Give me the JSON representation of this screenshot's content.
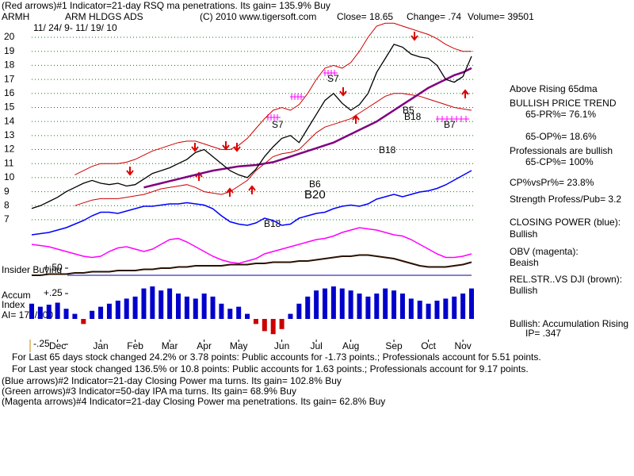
{
  "header": {
    "line1": "(Red arrows)#1 Indicator=21-day RSQ ma penetrations. Its gain= 135.9% Buy",
    "symbol": "ARMH",
    "company": "ARM HLDGS ADS",
    "copyright": "(C) 2010 www.tigersoft.com",
    "close": "Close= 18.65",
    "change": "Change= .74",
    "volume": "Volume= 39501",
    "date_range": "11/ 24/ 9- 11/ 19/ 10"
  },
  "left_labels": {
    "insider": "Insider Buying",
    "accum": "Accum",
    "index": "Index",
    "ai": "AI= 177/200"
  },
  "annotations": [
    "S7",
    "S7",
    "B5",
    "B18",
    "B7",
    "B20",
    "B18",
    "B18",
    "B6"
  ],
  "right_panel": [
    "Above Rising 65dma",
    "BULLISH PRICE TREND",
    "65-PR%= 76.1%",
    "65-OP%= 18.6%",
    "Professionals are bullish",
    "65-CP%= 100%",
    "CP%vsPr%= 23.8%",
    "Strength Profess/Pub= 3.2",
    "CLOSING POWER (blue):",
    "Bullish",
    "OBV (magenta):",
    "Beaish",
    "REL.STR..VS DJI (brown):",
    "Bullish",
    "Bullish: Accumulation Rising",
    "IP= .347"
  ],
  "footer": [
    "For Last 65 days stock changed  24.2% or  3.78 points:  Public accounts for -1.73 points.;  Professionals account for  5.51 points.",
    "For Last year stock changed  136.5% or  10.8 points:  Public accounts for  1.63 points.;  Professionals account for  9.17 points.",
    "(Blue arrows)#2 Indicator=21-day Closing Power ma turns. Its gain= 102.8% Buy",
    "(Green arrows)#3 Indicator=50-day IPA ma turns. Its gain= 68.9% Buy",
    "(Magenta arrows)#4 Indicator=21-day Closing Power ma penetrations. Its gain= 62.8% Buy"
  ],
  "chart_data": [
    {
      "type": "line",
      "ylim": [
        6.5,
        21.5
      ],
      "yticks": [
        7,
        8,
        9,
        10,
        11,
        12,
        13,
        14,
        15,
        16,
        17,
        18,
        19,
        20
      ],
      "grid": true,
      "series": [
        {
          "color": "#cc0000",
          "values": [
            null,
            null,
            null,
            null,
            null,
            10.2,
            10.5,
            10.8,
            11.0,
            11.0,
            11.0,
            11.1,
            11.3,
            11.6,
            11.9,
            12.1,
            12.3,
            12.5,
            12.6,
            12.6,
            12.4,
            12.2,
            12.0,
            12.0,
            12.3,
            12.8,
            13.5,
            14.2,
            14.8,
            15.0,
            14.8,
            15.2,
            16.0,
            17.0,
            17.8,
            18.0,
            17.8,
            18.2,
            19.0,
            20.0,
            20.8,
            21.0,
            21.0,
            20.8,
            20.6,
            20.4,
            20.2,
            19.9,
            19.5,
            19.2,
            19.0,
            19.0
          ]
        },
        {
          "color": "#cc0000",
          "values": [
            null,
            null,
            null,
            null,
            null,
            8.0,
            8.2,
            8.4,
            8.5,
            8.5,
            8.5,
            8.6,
            8.7,
            8.8,
            9.0,
            9.2,
            9.3,
            9.4,
            9.5,
            9.3,
            9.0,
            8.9,
            8.8,
            9.0,
            9.4,
            9.8,
            10.5,
            11.0,
            11.5,
            11.7,
            11.8,
            12.0,
            12.6,
            13.2,
            13.6,
            13.8,
            14.0,
            14.2,
            14.6,
            15.0,
            15.4,
            15.8,
            16.0,
            16.0,
            15.9,
            15.8,
            15.6,
            15.4,
            15.2,
            15.0,
            14.9,
            14.8
          ]
        },
        {
          "color": "#800080",
          "values": [
            null,
            null,
            null,
            null,
            null,
            null,
            null,
            null,
            null,
            null,
            null,
            null,
            null,
            9.3,
            9.45,
            9.6,
            9.75,
            9.9,
            10.05,
            10.2,
            10.35,
            10.5,
            10.6,
            10.7,
            10.8,
            10.85,
            10.9,
            11.0,
            11.1,
            11.3,
            11.5,
            11.7,
            11.9,
            12.1,
            12.3,
            12.5,
            12.8,
            13.1,
            13.4,
            13.7,
            14.0,
            14.4,
            14.8,
            15.2,
            15.6,
            16.0,
            16.4,
            16.7,
            17.0,
            17.3,
            17.5,
            17.8
          ]
        },
        {
          "color": "#000000",
          "values": [
            7.8,
            8.0,
            8.3,
            8.6,
            9.0,
            9.3,
            9.6,
            9.8,
            9.6,
            9.5,
            9.6,
            9.4,
            9.5,
            9.9,
            10.3,
            10.5,
            10.7,
            11.0,
            11.3,
            11.8,
            12.0,
            11.5,
            11.0,
            10.5,
            10.2,
            10.0,
            10.6,
            11.5,
            12.2,
            12.8,
            13.0,
            12.5,
            13.5,
            14.5,
            15.5,
            16.0,
            15.3,
            14.8,
            15.2,
            16.0,
            17.5,
            18.5,
            19.5,
            19.3,
            18.8,
            18.6,
            18.5,
            18.0,
            17.0,
            16.8,
            17.2,
            18.65
          ]
        }
      ]
    },
    {
      "type": "line",
      "ylim": [
        0,
        100
      ],
      "series": [
        {
          "color": "#0000ff",
          "values": [
            36,
            37,
            38,
            40,
            42,
            45,
            48,
            52,
            55,
            55,
            54,
            56,
            58,
            60,
            60,
            61,
            62,
            62,
            63,
            62,
            61,
            58,
            52,
            47,
            45,
            44,
            46,
            50,
            48,
            44,
            45,
            50,
            52,
            54,
            55,
            58,
            60,
            61,
            60,
            62,
            66,
            68,
            70,
            68,
            70,
            72,
            73,
            75,
            78,
            82,
            86,
            90
          ]
        },
        {
          "color": "#ff00ff",
          "values": [
            28,
            27,
            26,
            24,
            22,
            20,
            18,
            17,
            18,
            22,
            25,
            26,
            24,
            22,
            24,
            28,
            32,
            33,
            30,
            26,
            22,
            18,
            15,
            13,
            12,
            14,
            16,
            20,
            22,
            24,
            26,
            28,
            30,
            32,
            33,
            35,
            38,
            40,
            42,
            41,
            40,
            38,
            36,
            35,
            32,
            28,
            24,
            20,
            17,
            17,
            18,
            20
          ]
        },
        {
          "color": "#2a1200",
          "values": [
            2,
            2,
            3,
            3,
            3,
            4,
            4,
            5,
            5,
            5,
            6,
            6,
            6,
            7,
            7,
            8,
            8,
            9,
            9,
            10,
            10,
            10,
            10,
            11,
            11,
            11,
            12,
            12,
            13,
            13,
            13,
            14,
            14,
            15,
            16,
            17,
            18,
            18,
            19,
            19,
            18,
            17,
            16,
            14,
            12,
            10,
            9,
            9,
            9,
            10,
            11,
            13
          ]
        }
      ]
    },
    {
      "type": "bar",
      "categories": [
        null,
        null,
        null,
        "Dec",
        null,
        null,
        null,
        null,
        "Jan",
        null,
        null,
        null,
        "Feb",
        null,
        null,
        null,
        "Mar",
        null,
        null,
        null,
        "Apr",
        null,
        null,
        null,
        "May",
        null,
        null,
        null,
        null,
        "Jun",
        null,
        null,
        null,
        "Jul",
        null,
        null,
        null,
        "Aug",
        null,
        null,
        null,
        null,
        "Sep",
        null,
        null,
        null,
        "Oct",
        null,
        null,
        null,
        "Nov",
        null
      ],
      "values": [
        0.15,
        0.12,
        0.14,
        0.16,
        0.1,
        0.05,
        -0.05,
        0.08,
        0.12,
        0.15,
        0.18,
        0.2,
        0.22,
        0.3,
        0.32,
        0.28,
        0.3,
        0.25,
        0.22,
        0.2,
        0.25,
        0.22,
        0.15,
        0.1,
        0.12,
        0.05,
        -0.05,
        -0.12,
        -0.15,
        -0.1,
        0.05,
        0.15,
        0.22,
        0.28,
        0.3,
        0.32,
        0.3,
        0.28,
        0.25,
        0.22,
        0.25,
        0.3,
        0.28,
        0.25,
        0.2,
        0.18,
        0.15,
        0.18,
        0.2,
        0.22,
        0.25,
        0.3
      ],
      "color": "#0000cc",
      "negative_color": "#cc0000",
      "ylim": [
        -0.3,
        0.55
      ],
      "yticks": [
        {
          "value": 0.5,
          "label": "+.50"
        },
        {
          "value": 0.25,
          "label": "+.25"
        },
        {
          "value": -0.25,
          "label": "-.25"
        }
      ]
    }
  ]
}
